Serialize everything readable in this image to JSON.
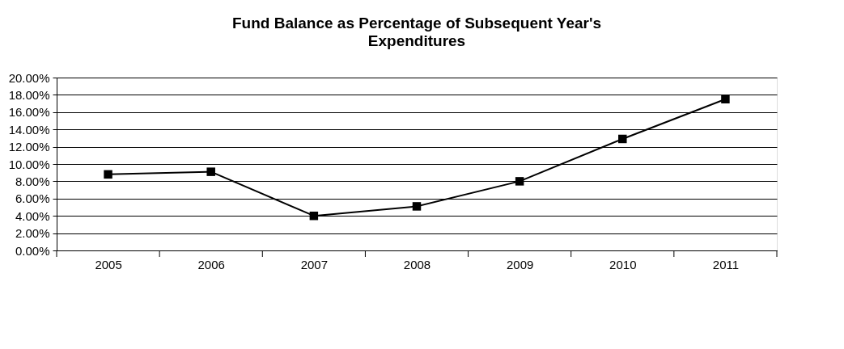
{
  "chart_data": {
    "type": "line",
    "title": "Fund Balance as Percentage of Subsequent Year's Expenditures",
    "categories": [
      "2005",
      "2006",
      "2007",
      "2008",
      "2009",
      "2010",
      "2011"
    ],
    "series": [
      {
        "color": "#000000",
        "values": [
          8.8,
          9.1,
          4.0,
          5.1,
          8.0,
          12.9,
          17.5
        ]
      }
    ],
    "ylim": [
      0,
      20
    ],
    "yticks": [
      {
        "value": 0,
        "label": "0.00%"
      },
      {
        "value": 2,
        "label": "2.00%"
      },
      {
        "value": 4,
        "label": "4.00%"
      },
      {
        "value": 6,
        "label": "6.00%"
      },
      {
        "value": 8,
        "label": "8.00%"
      },
      {
        "value": 10,
        "label": "10.00%"
      },
      {
        "value": 12,
        "label": "12.00%"
      },
      {
        "value": 14,
        "label": "14.00%"
      },
      {
        "value": 16,
        "label": "16.00%"
      },
      {
        "value": 18,
        "label": "18.00%"
      },
      {
        "value": 20,
        "label": "20.00%"
      }
    ],
    "grid": "y",
    "legend": false,
    "marker": "square",
    "line_style": "solid"
  }
}
